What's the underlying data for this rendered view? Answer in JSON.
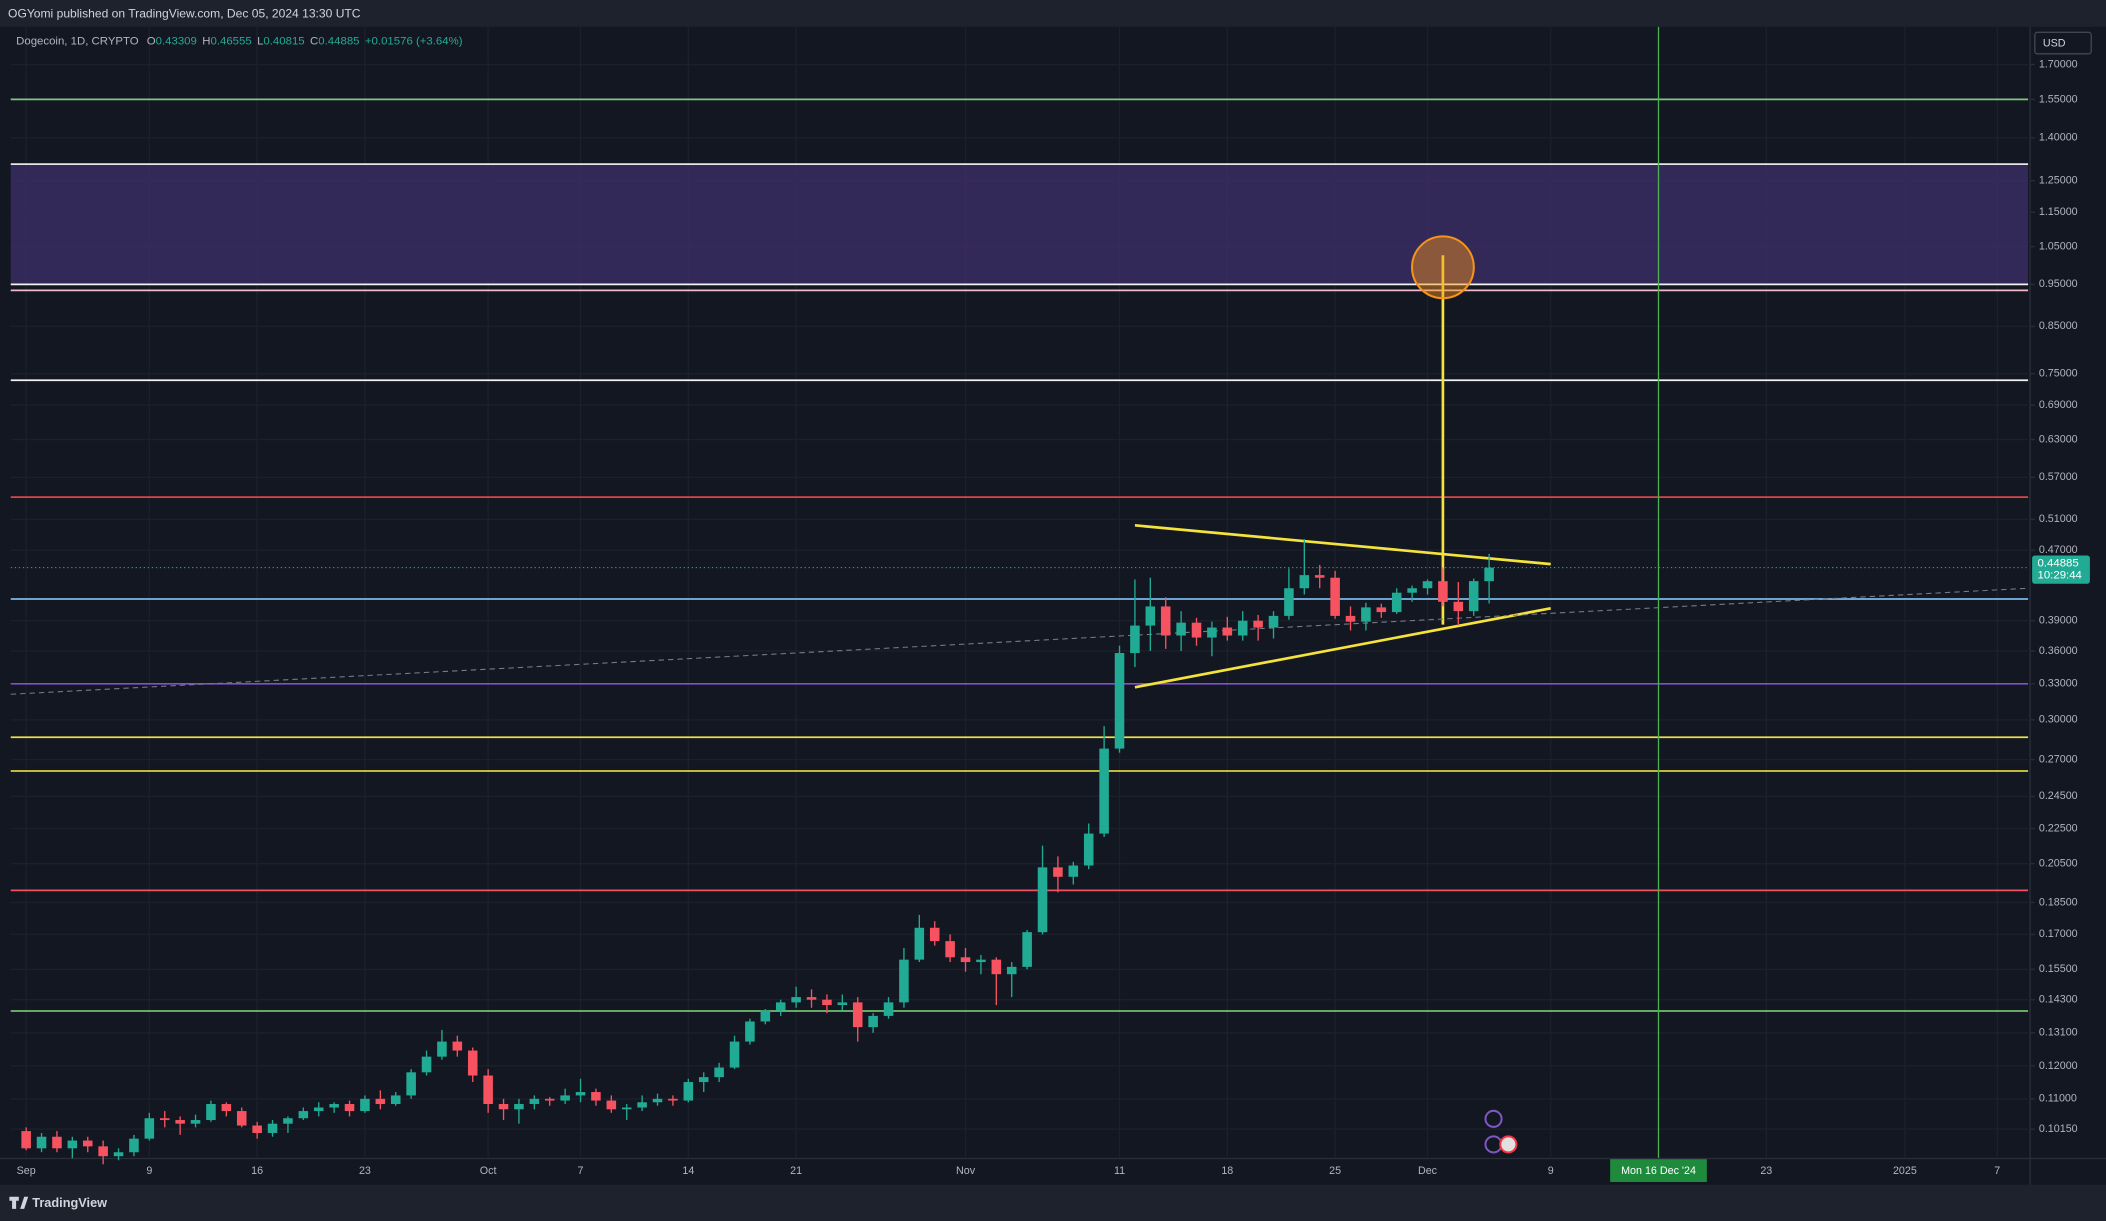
{
  "chart_data": {
    "type": "candlestick",
    "published": "OGYomi published on TradingView.com, Dec 05, 2024 13:30 UTC",
    "symbol": "Dogecoin, 1D, CRYPTO",
    "legend_keys": [
      "O",
      "H",
      "L",
      "C"
    ],
    "change": "+0.01576 (+3.64%)",
    "currency": "USD",
    "countdown": "10:29:44",
    "brand": "TradingView",
    "log_scale": true,
    "grid": true,
    "up_color": "#22ab94",
    "down_color": "#f7525f",
    "x": [
      "2024-09-01",
      "2024-09-02",
      "2024-09-03",
      "2024-09-04",
      "2024-09-05",
      "2024-09-06",
      "2024-09-07",
      "2024-09-08",
      "2024-09-09",
      "2024-09-10",
      "2024-09-11",
      "2024-09-12",
      "2024-09-13",
      "2024-09-14",
      "2024-09-15",
      "2024-09-16",
      "2024-09-17",
      "2024-09-18",
      "2024-09-19",
      "2024-09-20",
      "2024-09-21",
      "2024-09-22",
      "2024-09-23",
      "2024-09-24",
      "2024-09-25",
      "2024-09-26",
      "2024-09-27",
      "2024-09-28",
      "2024-09-29",
      "2024-09-30",
      "2024-10-01",
      "2024-10-02",
      "2024-10-03",
      "2024-10-04",
      "2024-10-05",
      "2024-10-06",
      "2024-10-07",
      "2024-10-08",
      "2024-10-09",
      "2024-10-10",
      "2024-10-11",
      "2024-10-12",
      "2024-10-13",
      "2024-10-14",
      "2024-10-15",
      "2024-10-16",
      "2024-10-17",
      "2024-10-18",
      "2024-10-19",
      "2024-10-20",
      "2024-10-21",
      "2024-10-22",
      "2024-10-23",
      "2024-10-24",
      "2024-10-25",
      "2024-10-26",
      "2024-10-27",
      "2024-10-28",
      "2024-10-29",
      "2024-10-30",
      "2024-10-31",
      "2024-11-01",
      "2024-11-02",
      "2024-11-03",
      "2024-11-04",
      "2024-11-05",
      "2024-11-06",
      "2024-11-07",
      "2024-11-08",
      "2024-11-09",
      "2024-11-10",
      "2024-11-11",
      "2024-11-12",
      "2024-11-13",
      "2024-11-14",
      "2024-11-15",
      "2024-11-16",
      "2024-11-17",
      "2024-11-18",
      "2024-11-19",
      "2024-11-20",
      "2024-11-21",
      "2024-11-22",
      "2024-11-23",
      "2024-11-24",
      "2024-11-25",
      "2024-11-26",
      "2024-11-27",
      "2024-11-28",
      "2024-11-29",
      "2024-11-30",
      "2024-12-01",
      "2024-12-02",
      "2024-12-03",
      "2024-12-04",
      "2024-12-05"
    ],
    "open": [
      0.101,
      0.0965,
      0.0995,
      0.0965,
      0.0985,
      0.097,
      0.0945,
      0.0955,
      0.099,
      0.1045,
      0.104,
      0.103,
      0.104,
      0.1085,
      0.1065,
      0.1025,
      0.1005,
      0.103,
      0.1045,
      0.1065,
      0.1075,
      0.1085,
      0.1065,
      0.11,
      0.1085,
      0.111,
      0.118,
      0.123,
      0.128,
      0.125,
      0.117,
      0.1085,
      0.107,
      0.1085,
      0.11,
      0.1095,
      0.111,
      0.112,
      0.1095,
      0.107,
      0.1075,
      0.109,
      0.11,
      0.1095,
      0.115,
      0.1165,
      0.1195,
      0.128,
      0.135,
      0.139,
      0.142,
      0.144,
      0.143,
      0.141,
      0.142,
      0.133,
      0.137,
      0.142,
      0.159,
      0.173,
      0.167,
      0.16,
      0.158,
      0.159,
      0.153,
      0.156,
      0.171,
      0.203,
      0.198,
      0.204,
      0.222,
      0.278,
      0.358,
      0.385,
      0.405,
      0.375,
      0.388,
      0.373,
      0.383,
      0.375,
      0.39,
      0.383,
      0.395,
      0.425,
      0.44,
      0.437,
      0.395,
      0.389,
      0.404,
      0.399,
      0.42,
      0.425,
      0.433,
      0.41,
      0.4,
      0.43309
    ],
    "high": [
      0.102,
      0.1005,
      0.101,
      0.0995,
      0.0995,
      0.0985,
      0.0965,
      0.1,
      0.106,
      0.1065,
      0.105,
      0.1055,
      0.1095,
      0.109,
      0.1075,
      0.1035,
      0.104,
      0.105,
      0.1075,
      0.109,
      0.109,
      0.1095,
      0.111,
      0.1125,
      0.112,
      0.119,
      0.125,
      0.132,
      0.13,
      0.126,
      0.119,
      0.11,
      0.11,
      0.111,
      0.1105,
      0.113,
      0.116,
      0.113,
      0.111,
      0.1085,
      0.111,
      0.1115,
      0.111,
      0.116,
      0.118,
      0.121,
      0.13,
      0.136,
      0.1395,
      0.143,
      0.148,
      0.147,
      0.145,
      0.145,
      0.144,
      0.138,
      0.144,
      0.164,
      0.179,
      0.176,
      0.17,
      0.164,
      0.161,
      0.16,
      0.158,
      0.172,
      0.215,
      0.209,
      0.206,
      0.228,
      0.295,
      0.365,
      0.435,
      0.437,
      0.415,
      0.4,
      0.393,
      0.389,
      0.394,
      0.4,
      0.396,
      0.4,
      0.448,
      0.484,
      0.452,
      0.445,
      0.405,
      0.409,
      0.408,
      0.425,
      0.428,
      0.435,
      0.448,
      0.432,
      0.436,
      0.46555
    ],
    "low": [
      0.096,
      0.0955,
      0.0955,
      0.094,
      0.0955,
      0.0925,
      0.0935,
      0.0945,
      0.0985,
      0.102,
      0.1,
      0.102,
      0.1035,
      0.105,
      0.102,
      0.099,
      0.0995,
      0.1005,
      0.104,
      0.105,
      0.106,
      0.105,
      0.106,
      0.107,
      0.108,
      0.11,
      0.117,
      0.122,
      0.123,
      0.115,
      0.106,
      0.104,
      0.103,
      0.107,
      0.108,
      0.1085,
      0.109,
      0.108,
      0.106,
      0.104,
      0.1065,
      0.108,
      0.108,
      0.109,
      0.112,
      0.115,
      0.119,
      0.127,
      0.134,
      0.137,
      0.14,
      0.14,
      0.138,
      0.139,
      0.128,
      0.131,
      0.136,
      0.14,
      0.158,
      0.165,
      0.158,
      0.154,
      0.153,
      0.141,
      0.144,
      0.155,
      0.17,
      0.19,
      0.194,
      0.202,
      0.22,
      0.275,
      0.345,
      0.36,
      0.362,
      0.36,
      0.365,
      0.355,
      0.37,
      0.37,
      0.37,
      0.372,
      0.391,
      0.418,
      0.425,
      0.392,
      0.38,
      0.38,
      0.393,
      0.397,
      0.41,
      0.418,
      0.405,
      0.385,
      0.395,
      0.40815
    ],
    "close": [
      0.0965,
      0.0995,
      0.0965,
      0.0985,
      0.097,
      0.0945,
      0.0955,
      0.099,
      0.1045,
      0.104,
      0.103,
      0.104,
      0.1085,
      0.1065,
      0.1025,
      0.1005,
      0.103,
      0.1045,
      0.1065,
      0.1075,
      0.1085,
      0.1065,
      0.11,
      0.1085,
      0.111,
      0.118,
      0.123,
      0.128,
      0.125,
      0.117,
      0.1085,
      0.107,
      0.1085,
      0.11,
      0.1095,
      0.111,
      0.112,
      0.1095,
      0.107,
      0.1075,
      0.109,
      0.11,
      0.1095,
      0.115,
      0.1165,
      0.1195,
      0.128,
      0.135,
      0.139,
      0.142,
      0.144,
      0.143,
      0.141,
      0.142,
      0.133,
      0.137,
      0.142,
      0.159,
      0.173,
      0.167,
      0.16,
      0.158,
      0.159,
      0.153,
      0.156,
      0.171,
      0.203,
      0.198,
      0.204,
      0.222,
      0.278,
      0.358,
      0.385,
      0.405,
      0.375,
      0.388,
      0.373,
      0.383,
      0.375,
      0.39,
      0.383,
      0.395,
      0.425,
      0.44,
      0.437,
      0.395,
      0.389,
      0.404,
      0.399,
      0.42,
      0.425,
      0.433,
      0.41,
      0.4,
      0.4331,
      0.44885
    ],
    "xlim": [
      "2024-08-31",
      "2025-01-09"
    ],
    "xticks": [
      {
        "value": "2024-09-01",
        "label": "Sep"
      },
      {
        "value": "2024-09-09",
        "label": "9"
      },
      {
        "value": "2024-09-16",
        "label": "16"
      },
      {
        "value": "2024-09-23",
        "label": "23"
      },
      {
        "value": "2024-10-01",
        "label": "Oct"
      },
      {
        "value": "2024-10-07",
        "label": "7"
      },
      {
        "value": "2024-10-14",
        "label": "14"
      },
      {
        "value": "2024-10-21",
        "label": "21"
      },
      {
        "value": "2024-11-01",
        "label": "Nov"
      },
      {
        "value": "2024-11-11",
        "label": "11"
      },
      {
        "value": "2024-11-18",
        "label": "18"
      },
      {
        "value": "2024-11-25",
        "label": "25"
      },
      {
        "value": "2024-12-01",
        "label": "Dec"
      },
      {
        "value": "2024-12-09",
        "label": "9"
      },
      {
        "value": "2024-12-23",
        "label": "23"
      },
      {
        "value": "2025-01-01",
        "label": "2025"
      },
      {
        "value": "2025-01-07",
        "label": "7"
      }
    ],
    "ylim": [
      0.0941,
      1.878
    ],
    "yticks": [
      {
        "value": 1.7,
        "label": "1.70000"
      },
      {
        "value": 1.55,
        "label": "1.55000"
      },
      {
        "value": 1.4,
        "label": "1.40000"
      },
      {
        "value": 1.25,
        "label": "1.25000"
      },
      {
        "value": 1.15,
        "label": "1.15000"
      },
      {
        "value": 1.05,
        "label": "1.05000"
      },
      {
        "value": 0.95,
        "label": "0.95000"
      },
      {
        "value": 0.85,
        "label": "0.85000"
      },
      {
        "value": 0.75,
        "label": "0.75000"
      },
      {
        "value": 0.69,
        "label": "0.69000"
      },
      {
        "value": 0.63,
        "label": "0.63000"
      },
      {
        "value": 0.57,
        "label": "0.57000"
      },
      {
        "value": 0.51,
        "label": "0.51000"
      },
      {
        "value": 0.47,
        "label": "0.47000"
      },
      {
        "value": 0.39,
        "label": "0.39000"
      },
      {
        "value": 0.36,
        "label": "0.36000"
      },
      {
        "value": 0.33,
        "label": "0.33000"
      },
      {
        "value": 0.3,
        "label": "0.30000"
      },
      {
        "value": 0.27,
        "label": "0.27000"
      },
      {
        "value": 0.245,
        "label": "0.24500"
      },
      {
        "value": 0.225,
        "label": "0.22500"
      },
      {
        "value": 0.205,
        "label": "0.20500"
      },
      {
        "value": 0.185,
        "label": "0.18500"
      },
      {
        "value": 0.17,
        "label": "0.17000"
      },
      {
        "value": 0.155,
        "label": "0.15500"
      },
      {
        "value": 0.143,
        "label": "0.14300"
      },
      {
        "value": 0.131,
        "label": "0.13100"
      },
      {
        "value": 0.12,
        "label": "0.12000"
      },
      {
        "value": 0.11,
        "label": "0.11000"
      },
      {
        "value": 0.1015,
        "label": "0.10150"
      }
    ],
    "zone": {
      "range": [
        0.95,
        1.306
      ],
      "color": "#3a2d62"
    },
    "levels": [
      {
        "value": 1.55,
        "color": "#7ec87e"
      },
      {
        "value": 1.306,
        "color": "#e6e6e6"
      },
      {
        "value": 0.95,
        "color": "#f2f2f2"
      },
      {
        "value": 0.935,
        "color": "#f0b8c8"
      },
      {
        "value": 0.737,
        "color": "#f2f2f2"
      },
      {
        "value": 0.541,
        "color": "#e04545"
      },
      {
        "value": 0.413,
        "color": "#7ab8e8"
      },
      {
        "value": 0.33,
        "color": "#8050d0"
      },
      {
        "value": 0.2865,
        "color": "#e8e050"
      },
      {
        "value": 0.262,
        "color": "#d8d040"
      },
      {
        "value": 0.191,
        "color": "#f05060"
      },
      {
        "value": 0.1388,
        "color": "#70c070"
      }
    ],
    "trendlines": [
      {
        "x": [
          "2024-11-12",
          "2024-12-09"
        ],
        "y": [
          0.502,
          0.453
        ],
        "color": "#f5e33d"
      },
      {
        "x": [
          "2024-11-12",
          "2024-12-09"
        ],
        "y": [
          0.327,
          0.403
        ],
        "color": "#f5e33d"
      },
      {
        "x": [
          "2024-12-02",
          "2024-12-02"
        ],
        "y": [
          0.386,
          1.026
        ],
        "color": "#f5e33d"
      },
      {
        "x": [
          "2024-08-31",
          "2025-01-09"
        ],
        "y": [
          0.321,
          0.425
        ],
        "color": "#787b86",
        "dashed": true
      }
    ],
    "circle": {
      "x": "2024-12-02",
      "y": 0.994,
      "color": "#f7931a"
    },
    "crosshair": {
      "x": "2024-12-16",
      "label": "Mon 16 Dec '24",
      "color": "#4caf50"
    }
  }
}
